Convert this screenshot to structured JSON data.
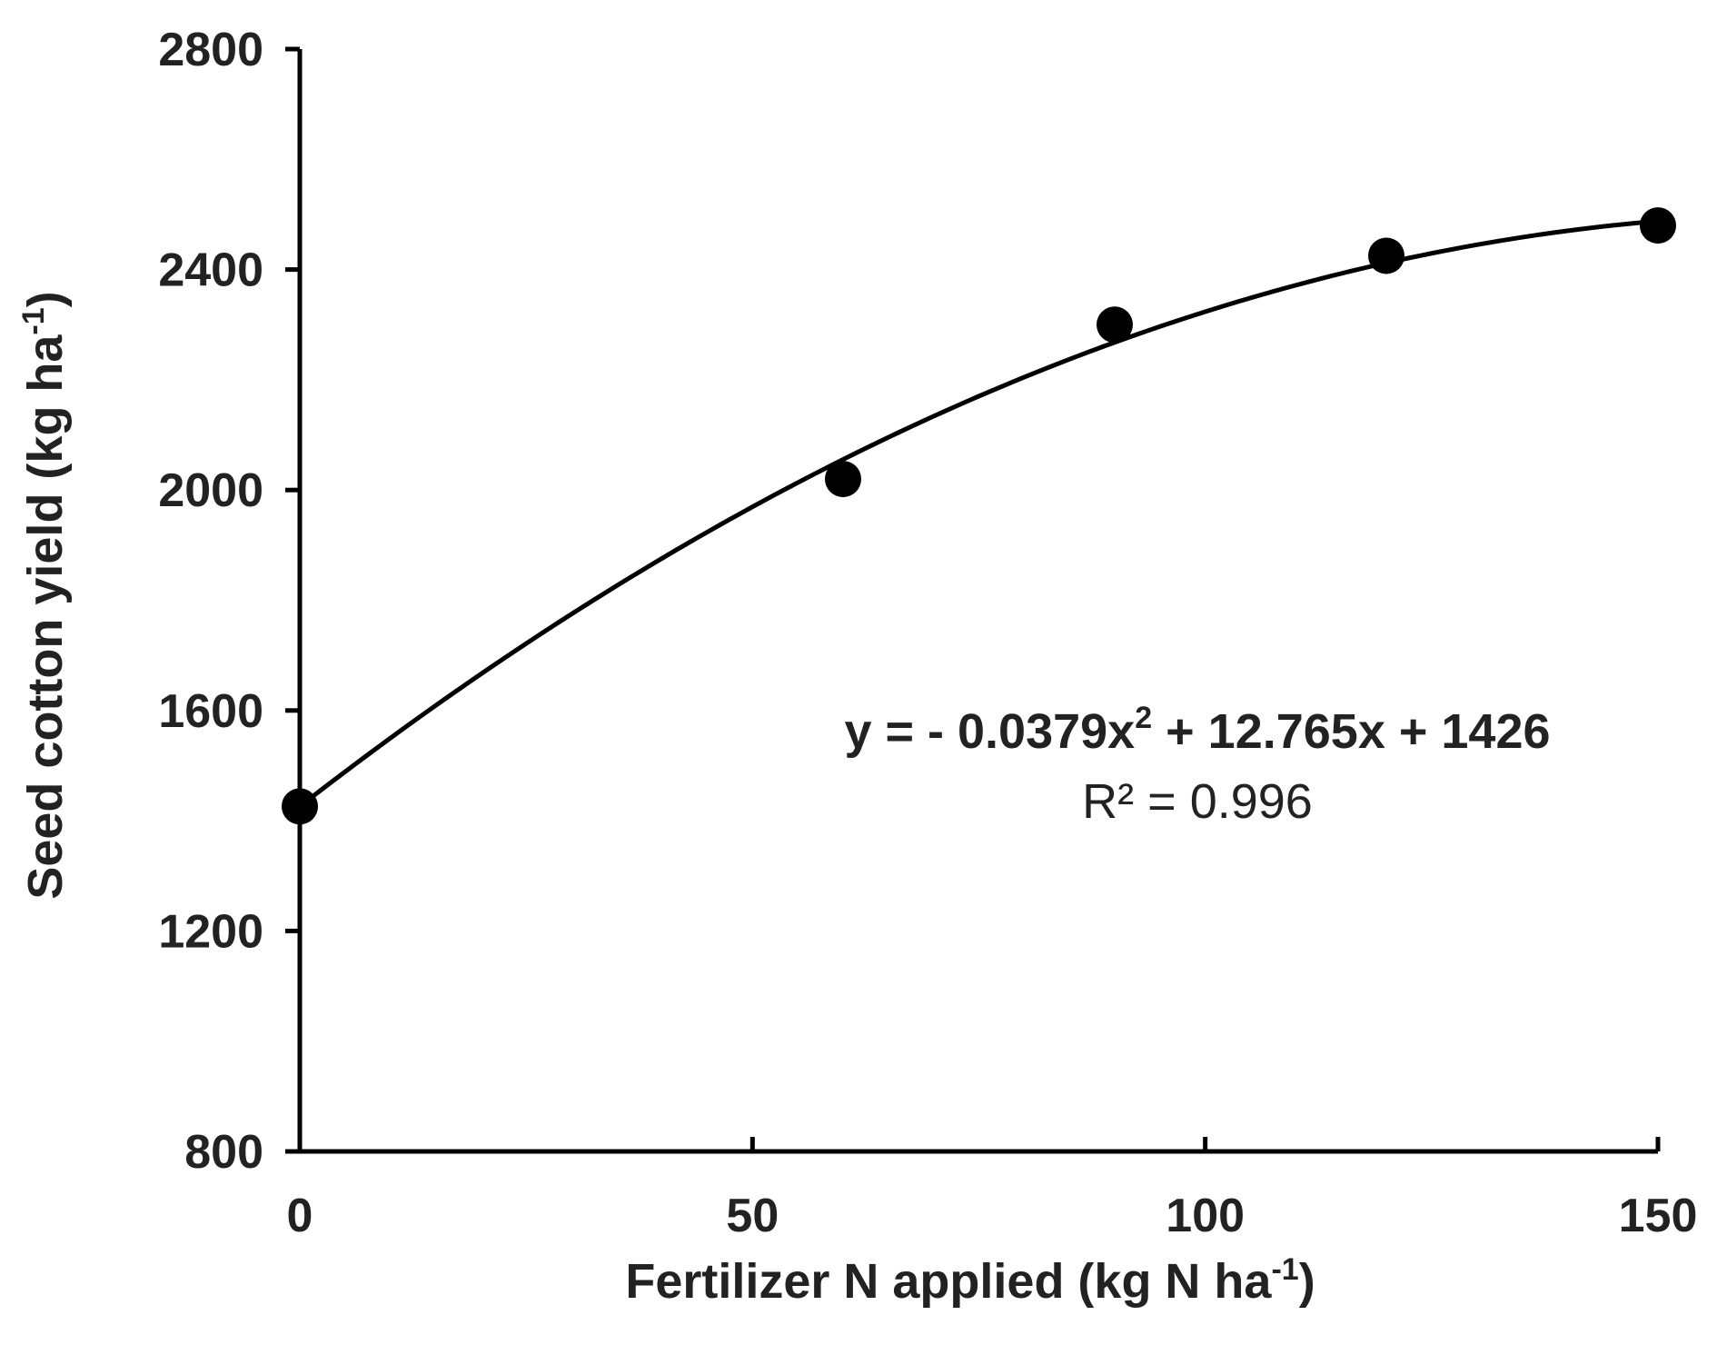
{
  "chart_data": {
    "type": "scatter",
    "xlabel_main": "Fertilizer N applied (kg N ha",
    "xlabel_sup": "-1",
    "xlabel_end": ")",
    "ylabel_main": "Seed cotton yield (kg ha",
    "ylabel_sup": "-1",
    "ylabel_end": ")",
    "xlim": [
      0,
      150
    ],
    "ylim": [
      800,
      2800
    ],
    "x_ticks": [
      0,
      50,
      100,
      150
    ],
    "x_tick_labels": [
      "0",
      "50",
      "100",
      "150"
    ],
    "y_ticks": [
      800,
      1200,
      1600,
      2000,
      2400,
      2800
    ],
    "y_tick_labels": [
      "800",
      "1200",
      "1600",
      "2000",
      "2400",
      "2800"
    ],
    "grid": false,
    "legend": "none",
    "series": [
      {
        "x": [
          0,
          60,
          90,
          120,
          150
        ],
        "y": [
          1426,
          2020,
          2300,
          2425,
          2480
        ]
      }
    ],
    "trendline": {
      "type": "polynomial",
      "coefficients": {
        "a": -0.0379,
        "b": 12.765,
        "c": 1426
      },
      "x_range": [
        0,
        150
      ]
    },
    "annotation": {
      "equation_parts": [
        "y = - 0.0379x",
        "2",
        " + 12.765x  + 1426"
      ],
      "r2": "R² = 0.996"
    },
    "colors": {
      "marker": "#000000",
      "line": "#000000",
      "axis": "#000000"
    }
  }
}
